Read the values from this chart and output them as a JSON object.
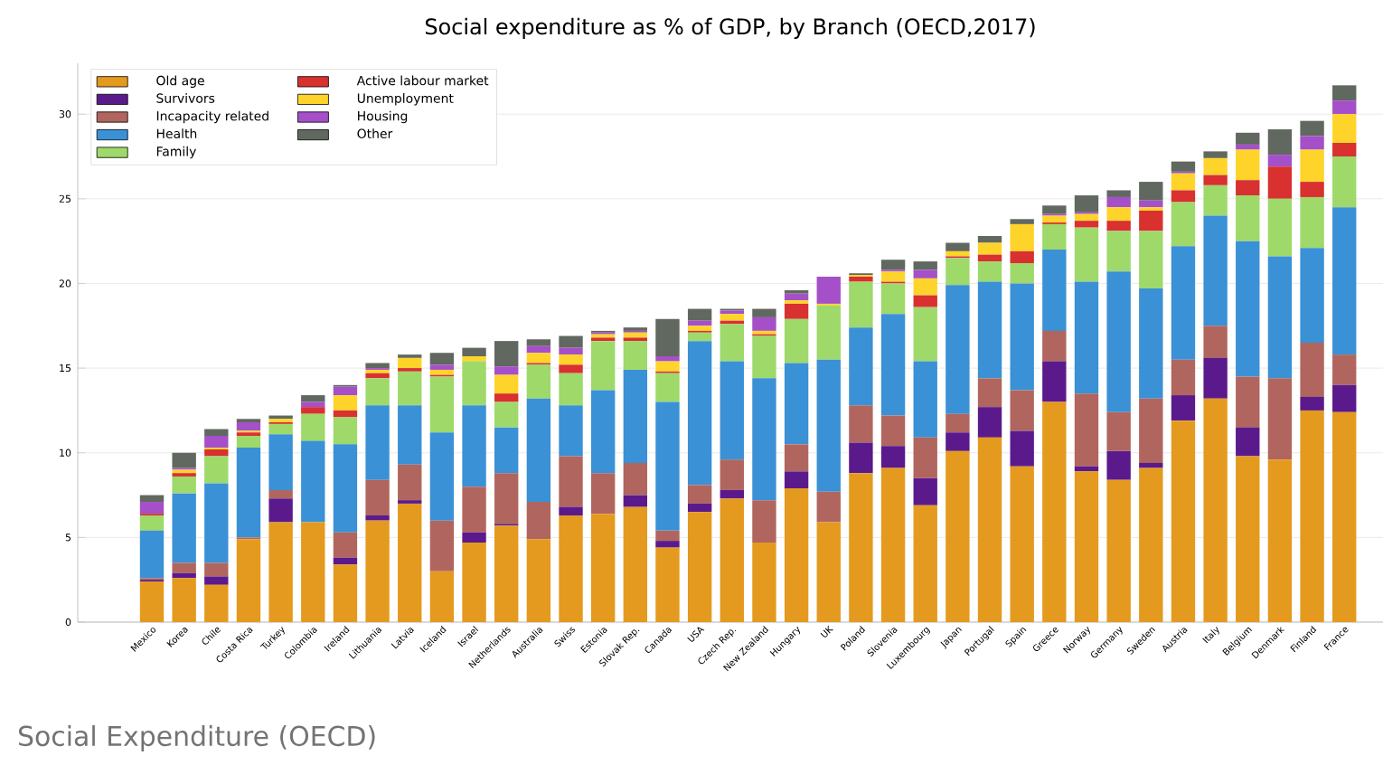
{
  "chart_data": {
    "type": "bar",
    "stacked": true,
    "title": "Social expenditure as % of GDP, by Branch (OECD,2017)",
    "categories": [
      "Mexico",
      "Korea",
      "Chile",
      "Costa Rica",
      "Turkey",
      "Colombia",
      "Ireland",
      "Lithuania",
      "Latvia",
      "Iceland",
      "Israel",
      "Netherlands",
      "Australia",
      "Swiss",
      "Estonia",
      "Slovak Rep.",
      "Canada",
      "USA",
      "Czech Rep.",
      "New Zealand",
      "Hungary",
      "UK",
      "Poland",
      "Slovenia",
      "Luxembourg",
      "Japan",
      "Portugal",
      "Spain",
      "Greece",
      "Norway",
      "Germany",
      "Sweden",
      "Austria",
      "Italy",
      "Belgium",
      "Denmark",
      "Finland",
      "France"
    ],
    "series": [
      {
        "name": "Old age",
        "color": "#e49a1e",
        "values": [
          2.4,
          2.6,
          2.2,
          4.9,
          5.9,
          5.9,
          3.4,
          6.0,
          7.0,
          3.0,
          4.7,
          5.7,
          4.9,
          6.3,
          6.4,
          6.8,
          4.4,
          6.5,
          7.3,
          4.7,
          7.9,
          5.9,
          8.8,
          9.1,
          6.9,
          10.1,
          10.9,
          9.2,
          13.0,
          8.9,
          8.4,
          9.1,
          11.9,
          13.2,
          9.8,
          9.6,
          12.5,
          12.4
        ]
      },
      {
        "name": "Survivors",
        "color": "#5b1a8c",
        "values": [
          0.1,
          0.3,
          0.5,
          0,
          1.4,
          0,
          0.4,
          0.3,
          0.2,
          0,
          0.6,
          0.1,
          0,
          0.5,
          0,
          0.7,
          0.4,
          0.5,
          0.5,
          0,
          1.0,
          0,
          1.8,
          1.3,
          1.6,
          1.1,
          1.8,
          2.1,
          2.4,
          0.3,
          1.7,
          0.3,
          1.5,
          2.4,
          1.7,
          0,
          0.8,
          1.6
        ]
      },
      {
        "name": "Incapacity related",
        "color": "#b0665e",
        "values": [
          0.1,
          0.6,
          0.8,
          0.1,
          0.5,
          0,
          1.5,
          2.1,
          2.1,
          3.0,
          2.7,
          3.0,
          2.2,
          3.0,
          2.4,
          1.9,
          0.6,
          1.1,
          1.8,
          2.5,
          1.6,
          1.8,
          2.2,
          1.8,
          2.4,
          1.1,
          1.7,
          2.4,
          1.8,
          4.3,
          2.3,
          3.8,
          2.1,
          1.9,
          3.0,
          4.8,
          3.2,
          1.8
        ]
      },
      {
        "name": "Health",
        "color": "#3a91d6",
        "values": [
          2.8,
          4.1,
          4.7,
          5.3,
          3.3,
          4.8,
          5.2,
          4.4,
          3.5,
          5.2,
          4.8,
          2.7,
          6.1,
          3.0,
          4.9,
          5.5,
          7.6,
          8.5,
          5.8,
          7.2,
          4.8,
          7.8,
          4.6,
          6.0,
          4.5,
          7.6,
          5.7,
          6.3,
          4.8,
          6.6,
          8.3,
          6.5,
          6.7,
          6.5,
          8.0,
          7.2,
          5.6,
          8.7
        ]
      },
      {
        "name": "Family",
        "color": "#9ed96a",
        "values": [
          0.9,
          1.0,
          1.6,
          0.7,
          0.6,
          1.6,
          1.6,
          1.6,
          2.0,
          3.3,
          2.6,
          1.5,
          2.0,
          1.9,
          2.9,
          1.7,
          1.7,
          0.5,
          2.2,
          2.5,
          2.6,
          3.2,
          2.7,
          1.8,
          3.2,
          1.6,
          1.2,
          1.2,
          1.5,
          3.2,
          2.4,
          3.4,
          2.6,
          1.8,
          2.7,
          3.4,
          3.0,
          3.0
        ]
      },
      {
        "name": "Active labour market",
        "color": "#d93030",
        "values": [
          0.1,
          0.2,
          0.4,
          0.2,
          0.1,
          0.4,
          0.4,
          0.3,
          0.2,
          0.1,
          0,
          0.5,
          0.1,
          0.5,
          0.2,
          0.2,
          0.1,
          0.1,
          0.2,
          0.1,
          0.9,
          0,
          0.3,
          0.1,
          0.7,
          0.1,
          0.4,
          0.7,
          0.1,
          0.4,
          0.6,
          1.2,
          0.7,
          0.6,
          0.9,
          1.9,
          0.9,
          0.8
        ]
      },
      {
        "name": "Unemployment",
        "color": "#ffd42a",
        "values": [
          0,
          0.2,
          0.1,
          0.1,
          0.2,
          0,
          0.9,
          0.2,
          0.6,
          0.3,
          0.3,
          1.1,
          0.6,
          0.6,
          0.2,
          0.3,
          0.6,
          0.3,
          0.4,
          0.2,
          0.2,
          0.1,
          0.1,
          0.6,
          1.0,
          0.3,
          0.7,
          1.6,
          0.4,
          0.4,
          0.8,
          0.2,
          1.0,
          1.0,
          1.8,
          0,
          1.9,
          1.7
        ]
      },
      {
        "name": "Housing",
        "color": "#a550c8",
        "values": [
          0.7,
          0.1,
          0.7,
          0.5,
          0,
          0.3,
          0.5,
          0.1,
          0,
          0.3,
          0,
          0.5,
          0.4,
          0.4,
          0.1,
          0.1,
          0.3,
          0.3,
          0.2,
          0.8,
          0.4,
          1.6,
          0,
          0.1,
          0.5,
          0,
          0,
          0,
          0.1,
          0.1,
          0.6,
          0.4,
          0.1,
          0,
          0.3,
          0.7,
          0.8,
          0.8
        ]
      },
      {
        "name": "Other",
        "color": "#606860",
        "values": [
          0.4,
          0.9,
          0.4,
          0.2,
          0.2,
          0.4,
          0.1,
          0.3,
          0.2,
          0.7,
          0.5,
          1.5,
          0.4,
          0.7,
          0.1,
          0.2,
          2.2,
          0.7,
          0.1,
          0.5,
          0.2,
          0,
          0.1,
          0.6,
          0.5,
          0.5,
          0.4,
          0.3,
          0.5,
          1.0,
          0.4,
          1.1,
          0.6,
          0.4,
          0.7,
          1.5,
          0.9,
          0.9
        ]
      }
    ],
    "ylim": [
      0,
      33
    ],
    "yticks": [
      0,
      5,
      10,
      15,
      20,
      25,
      30
    ],
    "grid": "y",
    "legend": "top left",
    "annotations": [
      "Social Expenditure (OECD)"
    ]
  }
}
